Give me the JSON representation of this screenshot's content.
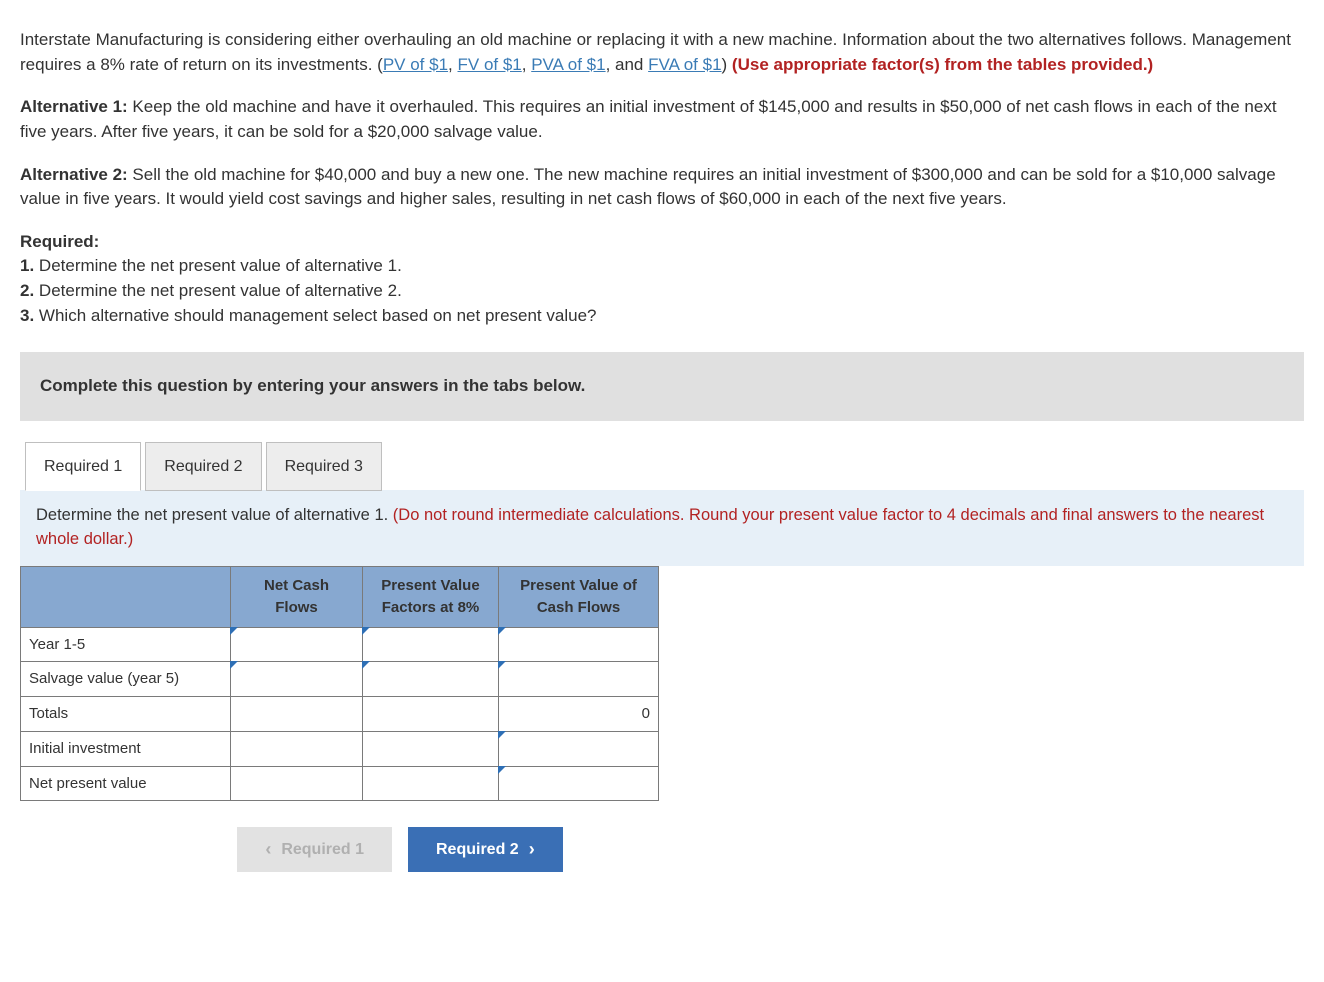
{
  "intro": {
    "text_a": "Interstate Manufacturing is considering either overhauling an old machine or replacing it with a new machine. Information about the two alternatives follows. Management requires a 8% rate of return on its investments. (",
    "link1": "PV of $1",
    "sep": ", ",
    "link2": "FV of $1",
    "link3": "PVA of $1",
    "and": ", and ",
    "link4": "FVA of $1",
    "close": ") ",
    "red": "(Use appropriate factor(s) from the tables provided.)"
  },
  "alt1": {
    "label": "Alternative 1:",
    "text": " Keep the old machine and have it overhauled. This requires an initial investment of $145,000 and results in $50,000 of net cash flows in each of the next five years. After five years, it can be sold for a $20,000 salvage value."
  },
  "alt2": {
    "label": "Alternative 2:",
    "text": " Sell the old machine for $40,000 and buy a new one. The new machine requires an initial investment of $300,000 and can be sold for a $10,000 salvage value in five years. It would yield cost savings and higher sales, resulting in net cash flows of $60,000 in each of the next five years."
  },
  "required": {
    "heading": "Required:",
    "r1": "1. Determine the net present value of alternative 1.",
    "r2": "2. Determine the net present value of alternative 2.",
    "r3": "3. Which alternative should management select based on net present value?"
  },
  "banner": "Complete this question by entering your answers in the tabs below.",
  "tabs": {
    "t1": "Required 1",
    "t2": "Required 2",
    "t3": "Required 3"
  },
  "instruction": {
    "black": "Determine the net present value of alternative 1. ",
    "red": "(Do not round intermediate calculations. Round your present value factor to 4 decimals and final answers to the nearest whole dollar.)"
  },
  "table": {
    "headers": {
      "h1": "Net Cash Flows",
      "h2": "Present Value Factors at 8%",
      "h3": "Present Value of Cash Flows"
    },
    "rows": {
      "r1": "Year 1-5",
      "r2": "Salvage value (year 5)",
      "r3": "Totals",
      "r4": "Initial investment",
      "r5": "Net present value",
      "totals_val": "0"
    }
  },
  "nav": {
    "prev": "Required 1",
    "next": "Required 2"
  }
}
